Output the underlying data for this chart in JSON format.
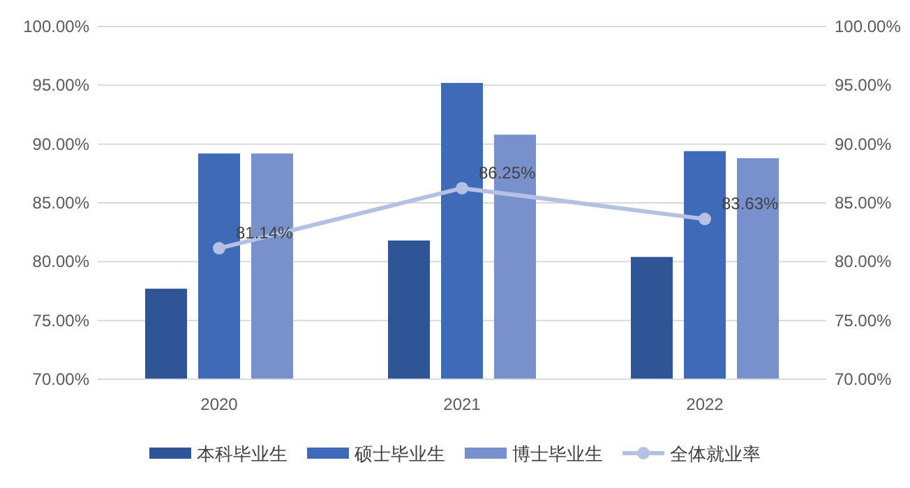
{
  "chart_data": {
    "type": "bar",
    "categories": [
      "2020",
      "2021",
      "2022"
    ],
    "series": [
      {
        "name": "本科毕业生",
        "color": "#2f5597",
        "values": [
          77.7,
          81.8,
          80.4
        ]
      },
      {
        "name": "硕士毕业生",
        "color": "#3e6ab8",
        "values": [
          89.2,
          95.2,
          89.4
        ]
      },
      {
        "name": "博士毕业生",
        "color": "#7891cd",
        "values": [
          89.2,
          90.8,
          88.8
        ]
      },
      {
        "name": "全体就业率",
        "type": "line",
        "axis": "y2",
        "color": "#b4c1e2",
        "marker": "circle",
        "values": [
          81.14,
          86.25,
          83.63
        ],
        "value_labels": [
          "81.14%",
          "86.25%",
          "83.63%"
        ]
      }
    ],
    "ylim": [
      70,
      100
    ],
    "yticks": [
      {
        "value": 70,
        "label": "70.00%"
      },
      {
        "value": 75,
        "label": "75.00%"
      },
      {
        "value": 80,
        "label": "80.00%"
      },
      {
        "value": 85,
        "label": "85.00%"
      },
      {
        "value": 90,
        "label": "90.00%"
      },
      {
        "value": 95,
        "label": "95.00%"
      },
      {
        "value": 100,
        "label": "100.00%"
      }
    ],
    "y2lim": [
      70,
      100
    ],
    "y2ticks": [
      {
        "value": 70,
        "label": "70.00%"
      },
      {
        "value": 75,
        "label": "75.00%"
      },
      {
        "value": 80,
        "label": "80.00%"
      },
      {
        "value": 85,
        "label": "85.00%"
      },
      {
        "value": 90,
        "label": "90.00%"
      },
      {
        "value": 95,
        "label": "95.00%"
      },
      {
        "value": 100,
        "label": "100.00%"
      }
    ],
    "grid": "y",
    "legend": "bottom"
  }
}
